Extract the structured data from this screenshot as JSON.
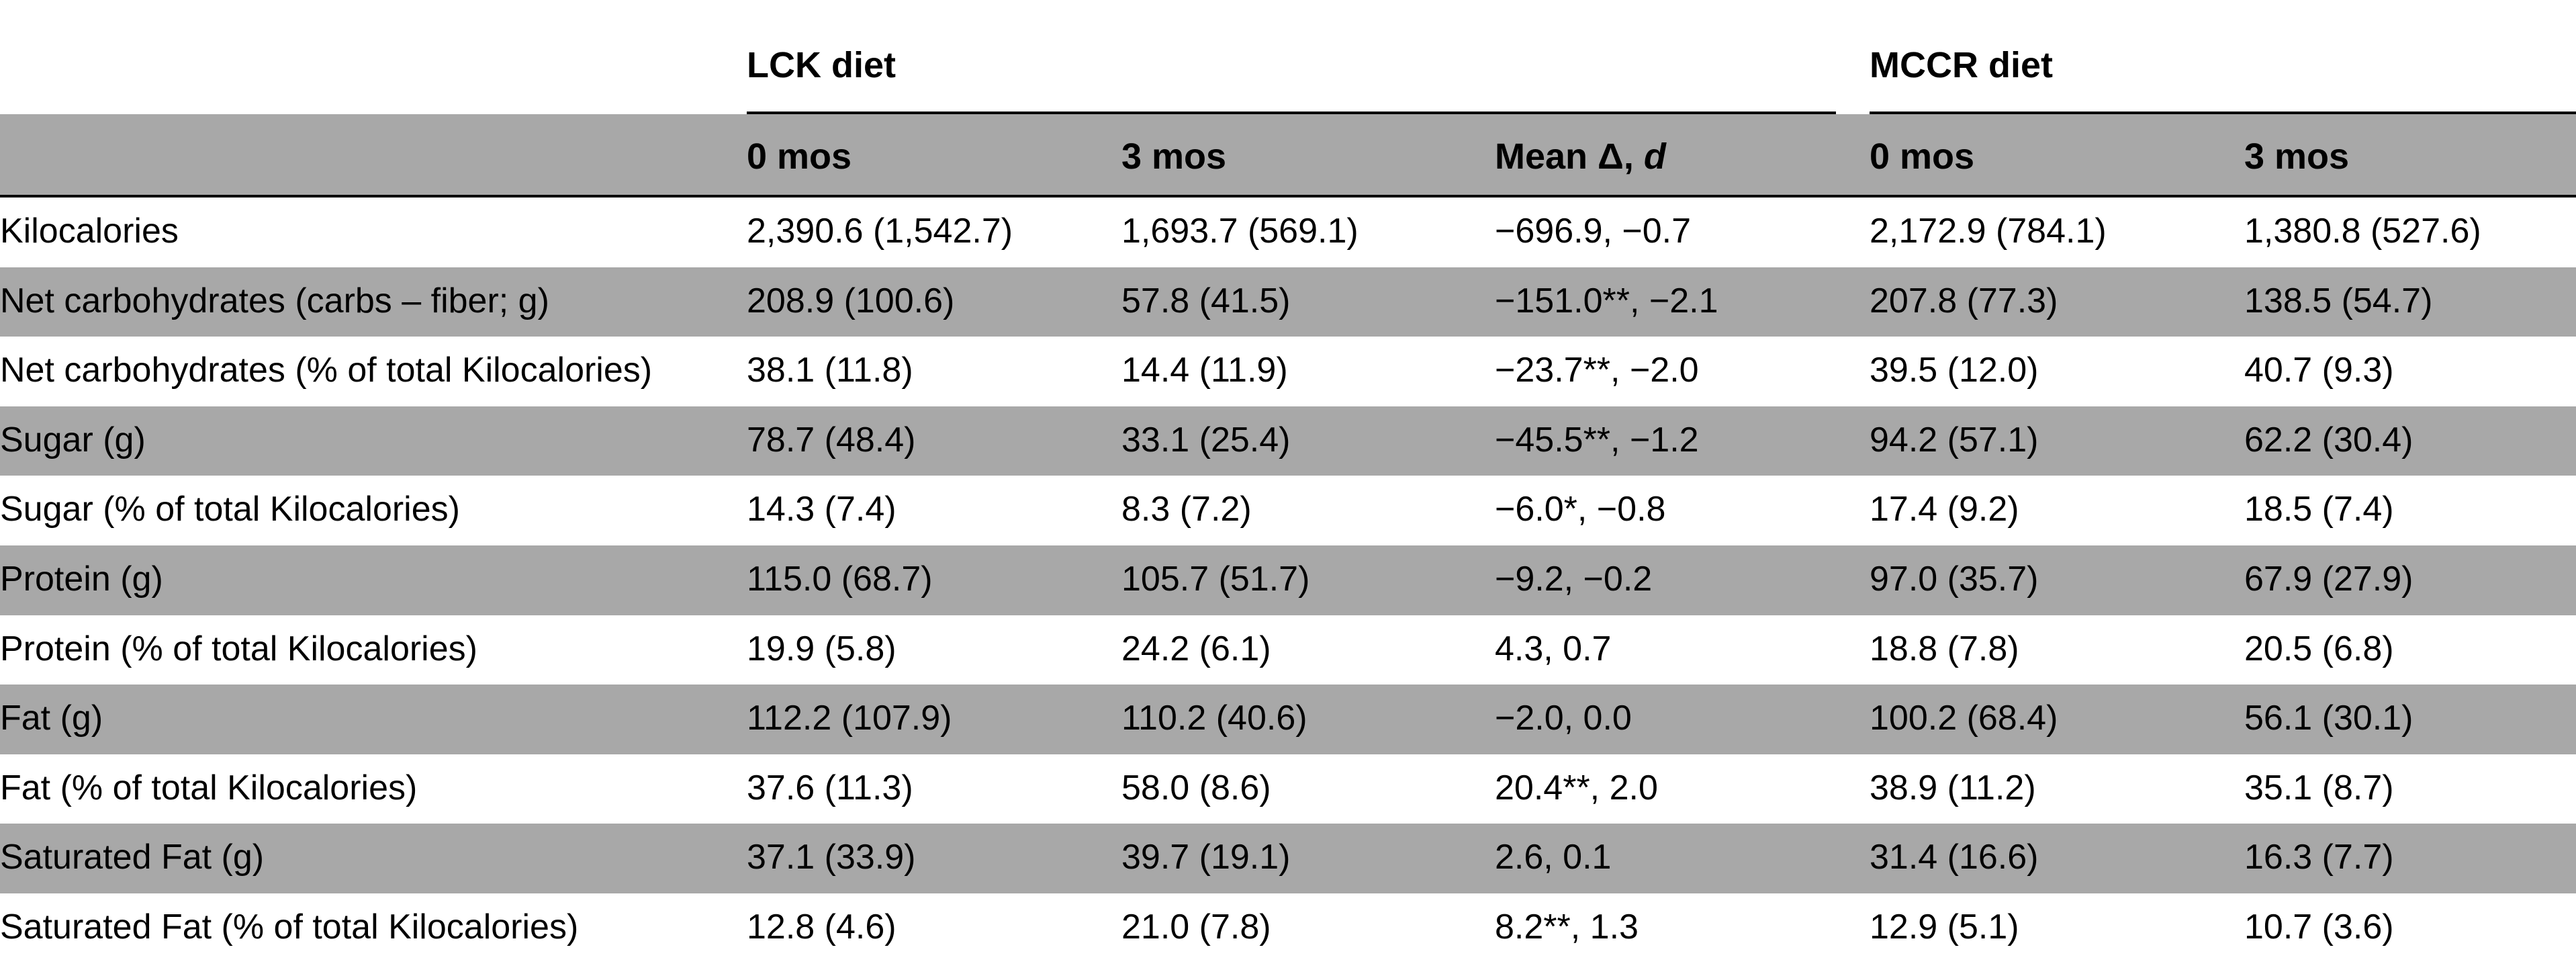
{
  "groups": {
    "lck": "LCK diet",
    "mccr": "MCCR diet"
  },
  "subheaders": {
    "lck_0": "0 mos",
    "lck_3": "3 mos",
    "mean_delta": "Mean Δ, ",
    "mean_delta_d": "d",
    "mccr_0": "0 mos",
    "mccr_3": "3 mos"
  },
  "rows": [
    {
      "label": "Kilocalories",
      "lck_0": "2,390.6 (1,542.7)",
      "lck_3": "1,693.7 (569.1)",
      "mean_delta": "−696.9, −0.7",
      "mccr_0": "2,172.9 (784.1)",
      "mccr_3": "1,380.8 (527.6)"
    },
    {
      "label": "Net carbohydrates (carbs – fiber; g)",
      "lck_0": "208.9 (100.6)",
      "lck_3": "57.8 (41.5)",
      "mean_delta": "−151.0**, −2.1",
      "mccr_0": "207.8 (77.3)",
      "mccr_3": "138.5 (54.7)"
    },
    {
      "label": "Net carbohydrates (% of total Kilocalories)",
      "lck_0": "38.1 (11.8)",
      "lck_3": "14.4 (11.9)",
      "mean_delta": "−23.7**, −2.0",
      "mccr_0": "39.5 (12.0)",
      "mccr_3": "40.7 (9.3)"
    },
    {
      "label": "Sugar (g)",
      "lck_0": "78.7 (48.4)",
      "lck_3": "33.1 (25.4)",
      "mean_delta": "−45.5**, −1.2",
      "mccr_0": "94.2 (57.1)",
      "mccr_3": "62.2 (30.4)"
    },
    {
      "label": "Sugar (% of total Kilocalories)",
      "lck_0": "14.3 (7.4)",
      "lck_3": "8.3 (7.2)",
      "mean_delta": "−6.0*, −0.8",
      "mccr_0": "17.4 (9.2)",
      "mccr_3": "18.5 (7.4)"
    },
    {
      "label": "Protein (g)",
      "lck_0": "115.0 (68.7)",
      "lck_3": "105.7 (51.7)",
      "mean_delta": "−9.2, −0.2",
      "mccr_0": "97.0 (35.7)",
      "mccr_3": "67.9 (27.9)"
    },
    {
      "label": "Protein (% of total Kilocalories)",
      "lck_0": "19.9 (5.8)",
      "lck_3": "24.2 (6.1)",
      "mean_delta": "4.3, 0.7",
      "mccr_0": "18.8 (7.8)",
      "mccr_3": "20.5 (6.8)"
    },
    {
      "label": "Fat (g)",
      "lck_0": "112.2 (107.9)",
      "lck_3": "110.2 (40.6)",
      "mean_delta": "−2.0, 0.0",
      "mccr_0": "100.2 (68.4)",
      "mccr_3": "56.1 (30.1)"
    },
    {
      "label": "Fat (% of total Kilocalories)",
      "lck_0": "37.6 (11.3)",
      "lck_3": "58.0 (8.6)",
      "mean_delta": "20.4**, 2.0",
      "mccr_0": "38.9 (11.2)",
      "mccr_3": "35.1 (8.7)"
    },
    {
      "label": "Saturated Fat (g)",
      "lck_0": "37.1 (33.9)",
      "lck_3": "39.7 (19.1)",
      "mean_delta": "2.6, 0.1",
      "mccr_0": "31.4 (16.6)",
      "mccr_3": "16.3 (7.7)"
    },
    {
      "label": "Saturated Fat (% of total Kilocalories)",
      "lck_0": "12.8 (4.6)",
      "lck_3": "21.0 (7.8)",
      "mean_delta": "8.2**, 1.3",
      "mccr_0": "12.9 (5.1)",
      "mccr_3": "10.7 (3.6)"
    }
  ]
}
